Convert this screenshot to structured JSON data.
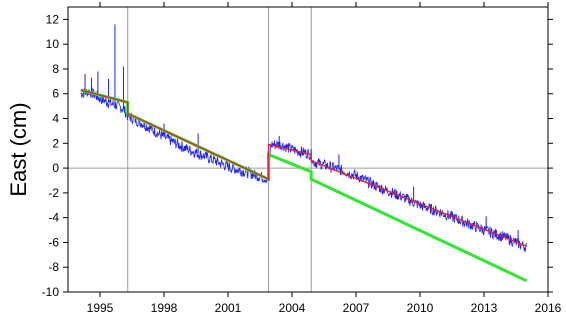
{
  "chart_data": {
    "type": "line",
    "title": "",
    "xlabel": "",
    "ylabel": "East (cm)",
    "xlim": [
      1993.5,
      2016.0
    ],
    "ylim": [
      -10,
      13
    ],
    "x_ticks": [
      1995,
      1998,
      2001,
      2004,
      2007,
      2010,
      2013,
      2016
    ],
    "y_ticks": [
      -10,
      -8,
      -6,
      -4,
      -2,
      0,
      2,
      4,
      6,
      8,
      10,
      12
    ],
    "grid": "none",
    "reference_lines": {
      "horizontal": [
        0
      ],
      "vertical": [
        1996.3,
        2002.9,
        2004.9
      ]
    },
    "colors": {
      "observed": "#1f1fff",
      "model": "#e8202a",
      "detrended": "#2ee82e",
      "reference": "#9a9a9a"
    },
    "series": [
      {
        "role": "observed",
        "x": [
          1994.1,
          1994.5,
          1995.0,
          1995.4,
          1995.7,
          1996.1,
          1996.3,
          1997.0,
          1998.0,
          1999.0,
          2000.0,
          2001.0,
          2002.0,
          2002.9,
          2003.0,
          2003.5,
          2004.0,
          2004.9,
          2005.0,
          2006.0,
          2007.0,
          2008.0,
          2009.0,
          2010.0,
          2011.0,
          2012.0,
          2013.0,
          2014.0,
          2015.0
        ],
        "y": [
          6.0,
          6.2,
          5.6,
          5.3,
          5.1,
          4.8,
          4.2,
          3.6,
          2.5,
          1.6,
          0.9,
          0.1,
          -0.4,
          -0.9,
          1.9,
          1.9,
          1.5,
          1.1,
          0.5,
          0.0,
          -0.6,
          -1.5,
          -2.2,
          -3.0,
          -3.6,
          -4.3,
          -5.0,
          -5.6,
          -6.4
        ]
      },
      {
        "role": "observed-spikes",
        "x": [
          1994.3,
          1994.6,
          1994.9,
          1995.4,
          1995.7,
          1996.1,
          1998.0,
          1999.6,
          2003.4,
          2006.2,
          2009.7,
          2013.1,
          2014.6
        ],
        "y": [
          7.6,
          7.3,
          7.8,
          7.2,
          11.6,
          8.2,
          3.6,
          2.8,
          2.6,
          1.1,
          -1.5,
          -3.9,
          -5.0
        ]
      },
      {
        "role": "model",
        "x": [
          1994.1,
          1996.3,
          1996.3,
          2002.9,
          2002.9,
          2004.9,
          2004.9,
          2015.0
        ],
        "y": [
          6.3,
          5.3,
          4.4,
          -0.9,
          1.9,
          1.1,
          0.6,
          -6.3
        ]
      },
      {
        "role": "detrended",
        "x": [
          1994.1,
          1996.3,
          1996.3,
          2002.9,
          2002.9,
          2004.9,
          2004.9,
          2015.0
        ],
        "y": [
          6.3,
          5.3,
          4.4,
          -0.9,
          1.1,
          -0.3,
          -0.9,
          -9.1
        ]
      }
    ]
  }
}
